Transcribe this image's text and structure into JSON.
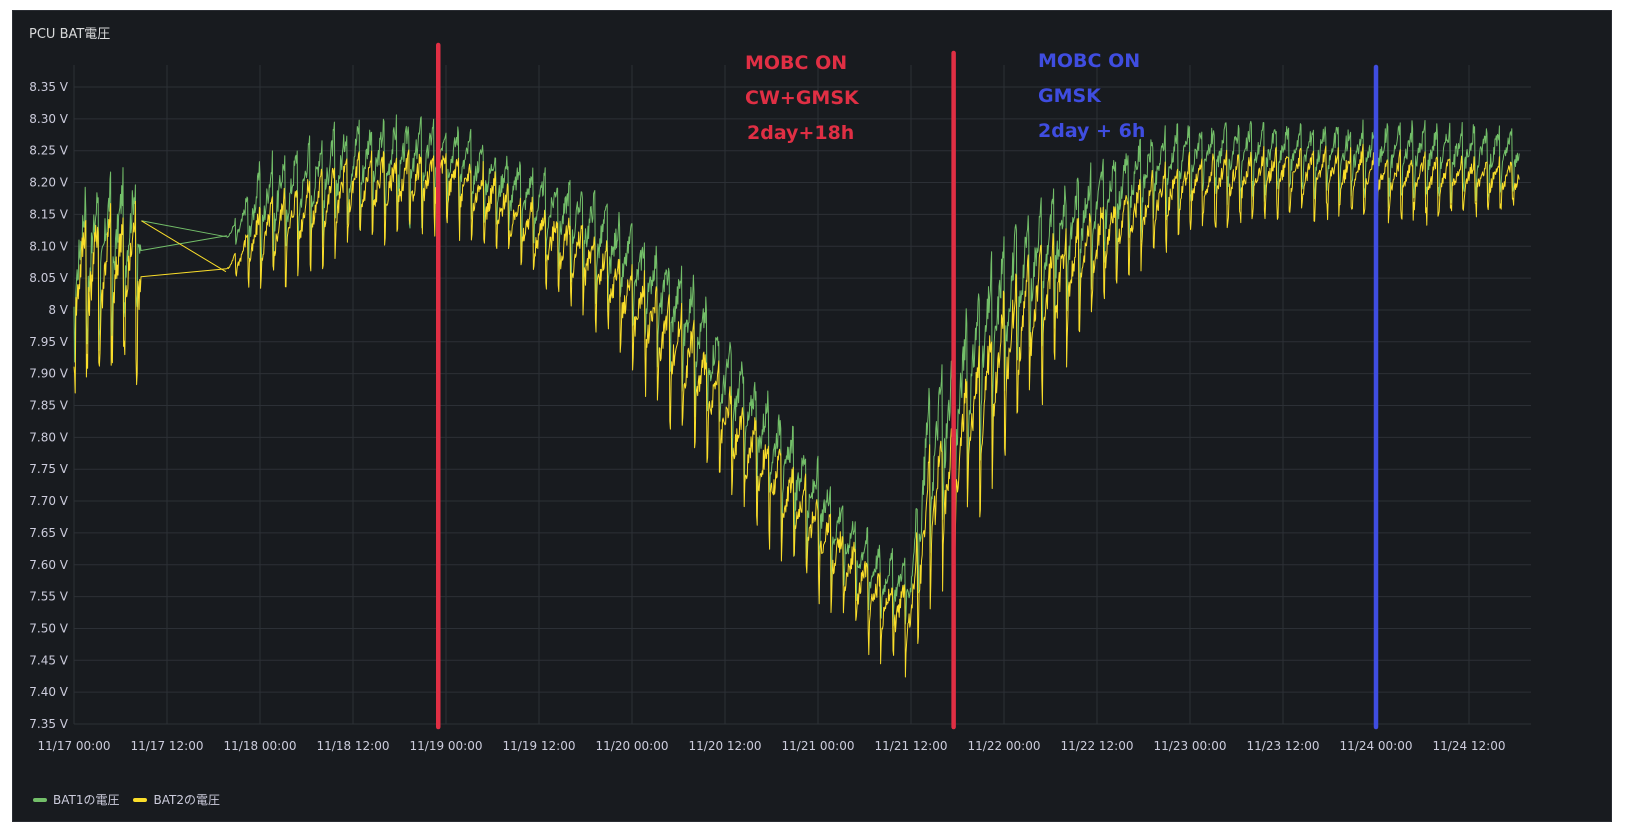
{
  "chart_data": {
    "type": "line",
    "title": "PCU BAT電圧",
    "y_ticks": [
      "7.35 V",
      "7.40 V",
      "7.45 V",
      "7.50 V",
      "7.55 V",
      "7.60 V",
      "7.65 V",
      "7.70 V",
      "7.75 V",
      "7.80 V",
      "7.85 V",
      "7.90 V",
      "7.95 V",
      "8 V",
      "8.05 V",
      "8.10 V",
      "8.15 V",
      "8.20 V",
      "8.25 V",
      "8.30 V",
      "8.35 V"
    ],
    "ylim": [
      7.35,
      8.35
    ],
    "x_ticks": [
      "11/17 00:00",
      "11/17 12:00",
      "11/18 00:00",
      "11/18 12:00",
      "11/19 00:00",
      "11/19 12:00",
      "11/20 00:00",
      "11/20 12:00",
      "11/21 00:00",
      "11/21 12:00",
      "11/22 00:00",
      "11/22 12:00",
      "11/23 00:00",
      "11/23 12:00",
      "11/24 00:00",
      "11/24 12:00"
    ],
    "x_hours_range": [
      0,
      188
    ],
    "grid": true,
    "legend_position": "bottom-left",
    "series": [
      {
        "name": "BAT1の電圧",
        "color": "#73bf69",
        "envelope_hours": [
          0,
          8.5,
          20,
          24,
          36,
          44,
          48,
          54,
          60,
          66,
          72,
          80,
          84,
          96,
          104,
          108,
          110,
          114,
          120,
          124,
          132,
          138,
          144,
          156,
          168,
          172,
          180,
          186
        ],
        "envelope_max": [
          8.18,
          8.21,
          8.12,
          8.22,
          8.29,
          8.29,
          8.29,
          8.25,
          8.21,
          8.19,
          8.12,
          8.04,
          7.95,
          7.75,
          7.62,
          7.6,
          7.85,
          7.95,
          8.1,
          8.15,
          8.22,
          8.26,
          8.29,
          8.29,
          8.29,
          8.29,
          8.29,
          8.28
        ],
        "envelope_min": [
          7.92,
          7.98,
          8.11,
          8.05,
          8.12,
          8.13,
          8.16,
          8.12,
          8.08,
          8.02,
          7.96,
          7.85,
          7.76,
          7.58,
          7.5,
          7.5,
          7.58,
          7.68,
          7.84,
          7.93,
          8.05,
          8.12,
          8.16,
          8.18,
          8.17,
          8.17,
          8.17,
          8.18
        ]
      },
      {
        "name": "BAT2の電圧",
        "color": "#fade2a",
        "envelope_hours": [
          0,
          8.5,
          20,
          24,
          36,
          44,
          48,
          54,
          60,
          66,
          72,
          80,
          84,
          96,
          104,
          108,
          110,
          114,
          120,
          124,
          132,
          138,
          144,
          156,
          168,
          172,
          180,
          186
        ],
        "envelope_max": [
          8.15,
          8.16,
          8.07,
          8.16,
          8.24,
          8.24,
          8.25,
          8.21,
          8.16,
          8.13,
          8.06,
          7.97,
          7.88,
          7.7,
          7.58,
          7.57,
          7.75,
          7.85,
          8.02,
          8.08,
          8.16,
          8.2,
          8.24,
          8.25,
          8.25,
          8.24,
          8.24,
          8.23
        ],
        "envelope_min": [
          7.88,
          7.9,
          8.06,
          8.02,
          8.09,
          8.11,
          8.13,
          8.08,
          8.03,
          7.98,
          7.9,
          7.78,
          7.7,
          7.55,
          7.45,
          7.43,
          7.5,
          7.62,
          7.76,
          7.85,
          7.98,
          8.07,
          8.12,
          8.15,
          8.14,
          8.14,
          8.15,
          8.16
        ]
      }
    ],
    "markers": [
      {
        "hours": 47,
        "color": "#e02f44"
      },
      {
        "hours": 113.5,
        "color": "#e02f44"
      },
      {
        "hours": 168,
        "color": "#3f4de0"
      }
    ],
    "annotations": [
      {
        "lines": [
          "MOBC ON",
          "CW+GMSK",
          "2day+18h"
        ],
        "color": "#e02f44"
      },
      {
        "lines": [
          "MOBC ON",
          "GMSK",
          "2day + 6h"
        ],
        "color": "#3f4de0"
      }
    ]
  }
}
